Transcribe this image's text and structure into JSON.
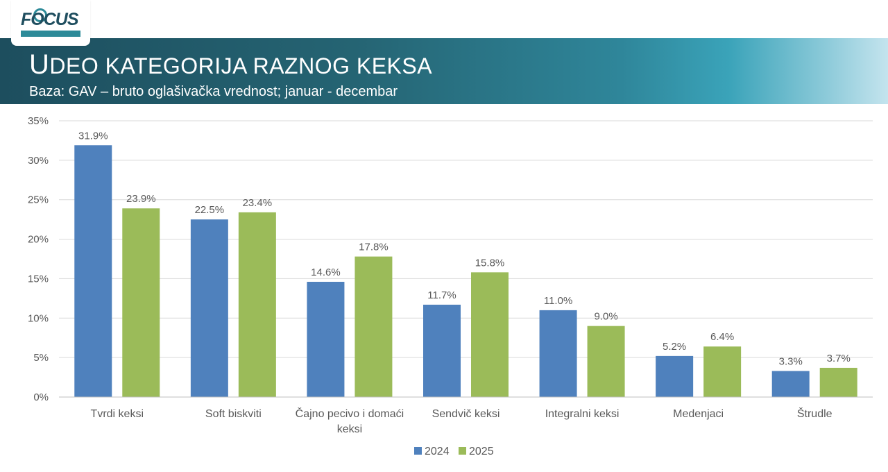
{
  "logo": {
    "text": "FOCUS"
  },
  "header": {
    "title": "Udeo kategorija raznog keksa",
    "subtitle": "Baza: GAV – bruto oglašivačka vrednost;  januar - decembar"
  },
  "colors": {
    "series_2024": "#4f81bd",
    "series_2025": "#9bbb59",
    "gridline": "#d9d9d9",
    "banner": "#256473"
  },
  "chart_data": {
    "type": "bar",
    "title": "Udeo kategorija raznog keksa",
    "categories": [
      [
        "Tvrdi keksi"
      ],
      [
        "Soft biskviti"
      ],
      [
        "Čajno pecivo i domaći",
        "keksi"
      ],
      [
        "Sendvič keksi"
      ],
      [
        "Integralni keksi"
      ],
      [
        "Medenjaci"
      ],
      [
        "Štrudle"
      ]
    ],
    "series": [
      {
        "name": "2024",
        "color": "#4f81bd",
        "values": [
          31.9,
          22.5,
          14.6,
          11.7,
          11.0,
          5.2,
          3.3
        ]
      },
      {
        "name": "2025",
        "color": "#9bbb59",
        "values": [
          23.9,
          23.4,
          17.8,
          15.8,
          9.0,
          6.4,
          3.7
        ]
      }
    ],
    "ylim": [
      0,
      35
    ],
    "yticks": [
      0,
      5,
      10,
      15,
      20,
      25,
      30,
      35
    ],
    "y_tick_suffix": "%",
    "value_label_suffix": "%",
    "grid": true,
    "legend_position": "bottom"
  }
}
